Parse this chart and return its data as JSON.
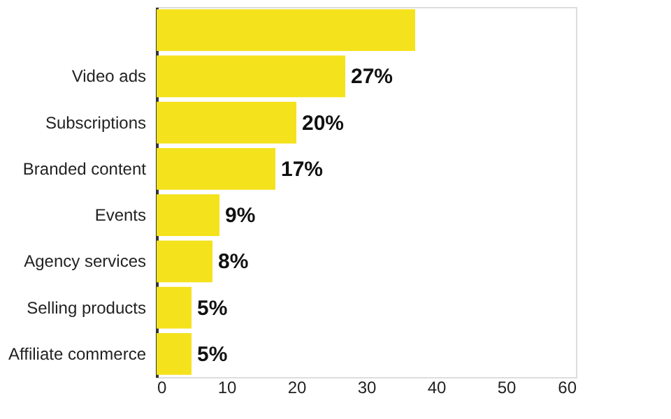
{
  "chart_data": {
    "type": "bar",
    "orientation": "horizontal",
    "categories": [
      null,
      "Video ads",
      "Subscriptions",
      "Branded content",
      "Events",
      "Agency services",
      "Selling products",
      "Affiliate commerce"
    ],
    "values": [
      37,
      27,
      20,
      17,
      9,
      8,
      5,
      5
    ],
    "value_labels": [
      null,
      "27%",
      "20%",
      "17%",
      "9%",
      "8%",
      "5%",
      "5%"
    ],
    "color": "#f4e21c",
    "xlim": [
      0,
      60
    ],
    "xticks": [
      0,
      10,
      20,
      30,
      40,
      50,
      60
    ],
    "grid": false
  }
}
